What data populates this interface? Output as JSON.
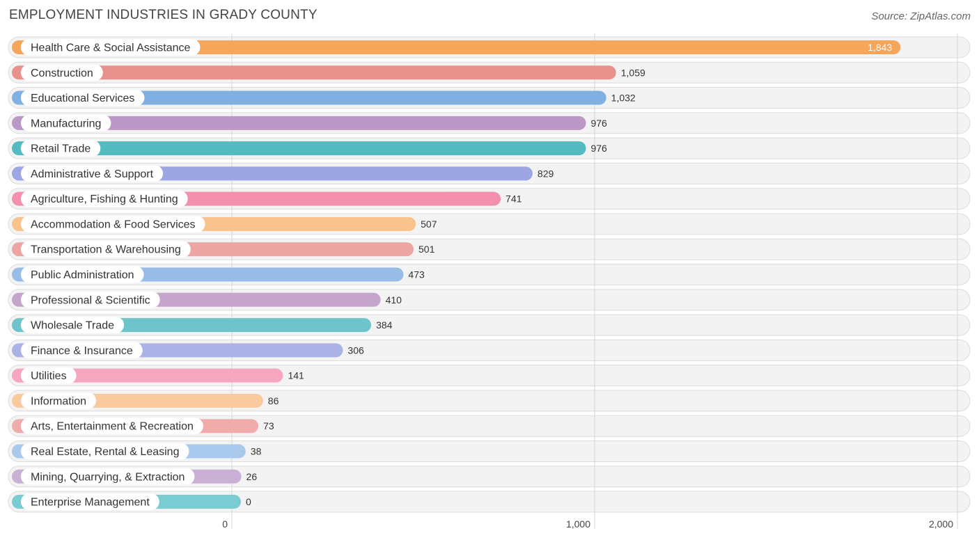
{
  "header": {
    "title": "EMPLOYMENT INDUSTRIES IN GRADY COUNTY",
    "source": "Source: ZipAtlas.com"
  },
  "chart_data": {
    "type": "bar",
    "orientation": "horizontal",
    "title": "EMPLOYMENT INDUSTRIES IN GRADY COUNTY",
    "xlabel": "",
    "ylabel": "",
    "xlim": [
      0,
      2000
    ],
    "ticks": [
      0,
      1000,
      2000
    ],
    "tick_labels": [
      "0",
      "1,000",
      "2,000"
    ],
    "grid": true,
    "categories": [
      "Health Care & Social Assistance",
      "Construction",
      "Educational Services",
      "Manufacturing",
      "Retail Trade",
      "Administrative & Support",
      "Agriculture, Fishing & Hunting",
      "Accommodation & Food Services",
      "Transportation & Warehousing",
      "Public Administration",
      "Professional & Scientific",
      "Wholesale Trade",
      "Finance & Insurance",
      "Utilities",
      "Information",
      "Arts, Entertainment & Recreation",
      "Real Estate, Rental & Leasing",
      "Mining, Quarrying, & Extraction",
      "Enterprise Management"
    ],
    "values": [
      1843,
      1059,
      1032,
      976,
      976,
      829,
      741,
      507,
      501,
      473,
      410,
      384,
      306,
      141,
      86,
      73,
      38,
      26,
      0
    ],
    "value_labels": [
      "1,843",
      "1,059",
      "1,032",
      "976",
      "976",
      "829",
      "741",
      "507",
      "501",
      "473",
      "410",
      "384",
      "306",
      "141",
      "86",
      "73",
      "38",
      "26",
      "0"
    ],
    "colors": [
      "#f5a65b",
      "#e8928e",
      "#7fb0e1",
      "#bb98c5",
      "#55bbc3",
      "#9da6e3",
      "#f58fae",
      "#f9c38d",
      "#eca5a2",
      "#97bde6",
      "#c5a5cc",
      "#6ec4cb",
      "#aab2e6",
      "#f7a6c0",
      "#f9ca9d",
      "#f0acaa",
      "#a9c9ec",
      "#cbb0d5",
      "#7acbd2"
    ]
  }
}
